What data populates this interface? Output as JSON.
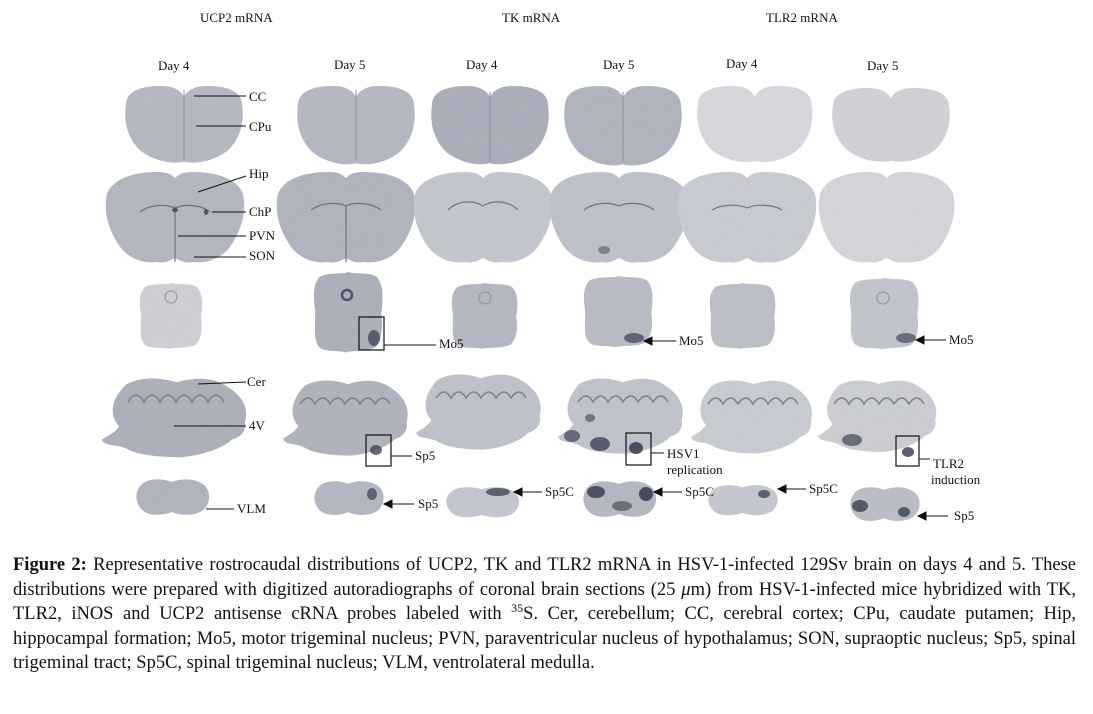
{
  "genes": [
    "UCP2 mRNA",
    "TK mRNA",
    "TLR2 mRNA"
  ],
  "days": [
    "Day 4",
    "Day 5",
    "Day 4",
    "Day 5",
    "Day 4",
    "Day 5"
  ],
  "labels": {
    "cc": "CC",
    "cpu": "CPu",
    "hip": "Hip",
    "chp": "ChP",
    "pvn": "PVN",
    "son": "SON",
    "mo5_a": "Mo5",
    "mo5_b": "Mo5",
    "mo5_c": "Mo5",
    "cer": "Cer",
    "v4": "4V",
    "sp5_a": "Sp5",
    "hsv1_line1": "HSV1",
    "hsv1_line2": "replication",
    "tlr2_line1": "TLR2",
    "tlr2_line2": "induction",
    "vlm": "VLM",
    "sp5_b": "Sp5",
    "sp5c_a": "Sp5C",
    "sp5c_b": "Sp5C",
    "sp5c_c": "Sp5C",
    "sp5_c": "Sp5"
  },
  "caption": {
    "label": "Figure 2:",
    "text_1": " Representative rostrocaudal distributions of UCP2, TK and TLR2 mRNA in HSV-1-infected 129Sv brain on days 4 and 5. These distributions were prepared with digitized autoradiographs of coronal brain sections (25 ",
    "mu": "μ",
    "text_2": "m) from HSV-1-infected mice hybridized with TK, TLR2, iNOS and UCP2 antisense cRNA probes labeled with ",
    "isotope": "35",
    "text_3": "S. Cer, cerebellum; CC, cerebral cortex; CPu, caudate putamen; Hip, hippocampal formation; Mo5, motor trigeminal nucleus; PVN, paraventricular nucleus of hypothalamus; SON, supraoptic nucleus; Sp5, spinal trigeminal tract; Sp5C, spinal trigeminal nucleus; VLM, ventrolateral medulla."
  },
  "colors": {
    "tissue": "#b4b8c3",
    "tissue_light": "#d0d2d8",
    "tissue_pale": "#e2e3e6",
    "signal": "#3a3f52"
  }
}
